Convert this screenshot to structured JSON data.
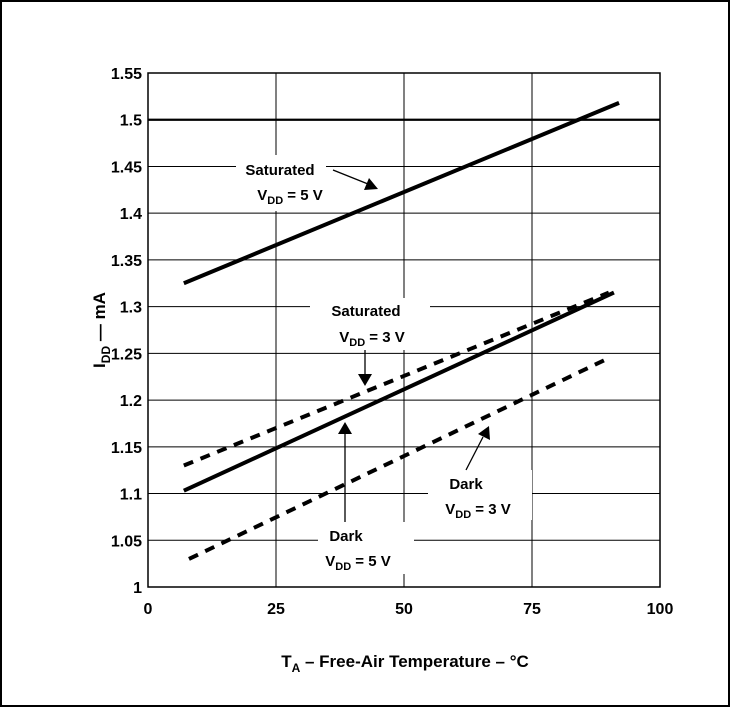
{
  "chart_data": {
    "type": "line",
    "xlabel": {
      "main": "T",
      "sub": "A",
      "rest": " – Free-Air Temperature – °C"
    },
    "ylabel": {
      "main": "I",
      "sub": "DD",
      "rest": " — mA"
    },
    "xlim": [
      0,
      100
    ],
    "ylim": [
      1,
      1.55
    ],
    "x_ticks": [
      0,
      25,
      50,
      75,
      100
    ],
    "x_tick_labels": [
      "0",
      "25",
      "50",
      "75",
      "100"
    ],
    "y_ticks": [
      1,
      1.05,
      1.1,
      1.15,
      1.2,
      1.25,
      1.3,
      1.35,
      1.4,
      1.45,
      1.5,
      1.55
    ],
    "y_tick_labels": [
      "1",
      "1.05",
      "1.1",
      "1.15",
      "1.2",
      "1.25",
      "1.3",
      "1.35",
      "1.4",
      "1.45",
      "1.5",
      "1.55"
    ],
    "grid": true,
    "reference_line": 1.5,
    "series": [
      {
        "name": "Saturated VDD = 5 V",
        "style": "solid",
        "x": [
          7,
          92
        ],
        "y": [
          1.325,
          1.518
        ]
      },
      {
        "name": "Saturated VDD = 3 V",
        "style": "dashed",
        "x": [
          7,
          90
        ],
        "y": [
          1.13,
          1.315
        ]
      },
      {
        "name": "Dark VDD = 5 V",
        "style": "solid",
        "x": [
          7,
          91
        ],
        "y": [
          1.103,
          1.315
        ]
      },
      {
        "name": "Dark VDD = 3 V",
        "style": "dashed",
        "x": [
          8,
          90
        ],
        "y": [
          1.03,
          1.245
        ]
      }
    ],
    "annotations": [
      {
        "line1": "Saturated",
        "v": "V",
        "sub": "DD",
        "rest": " = 5 V"
      },
      {
        "line1": "Saturated",
        "v": "V",
        "sub": "DD",
        "rest": " = 3 V"
      },
      {
        "line1": "Dark",
        "v": "V",
        "sub": "DD",
        "rest": " = 5 V"
      },
      {
        "line1": "Dark",
        "v": "V",
        "sub": "DD",
        "rest": " = 3 V"
      }
    ]
  }
}
